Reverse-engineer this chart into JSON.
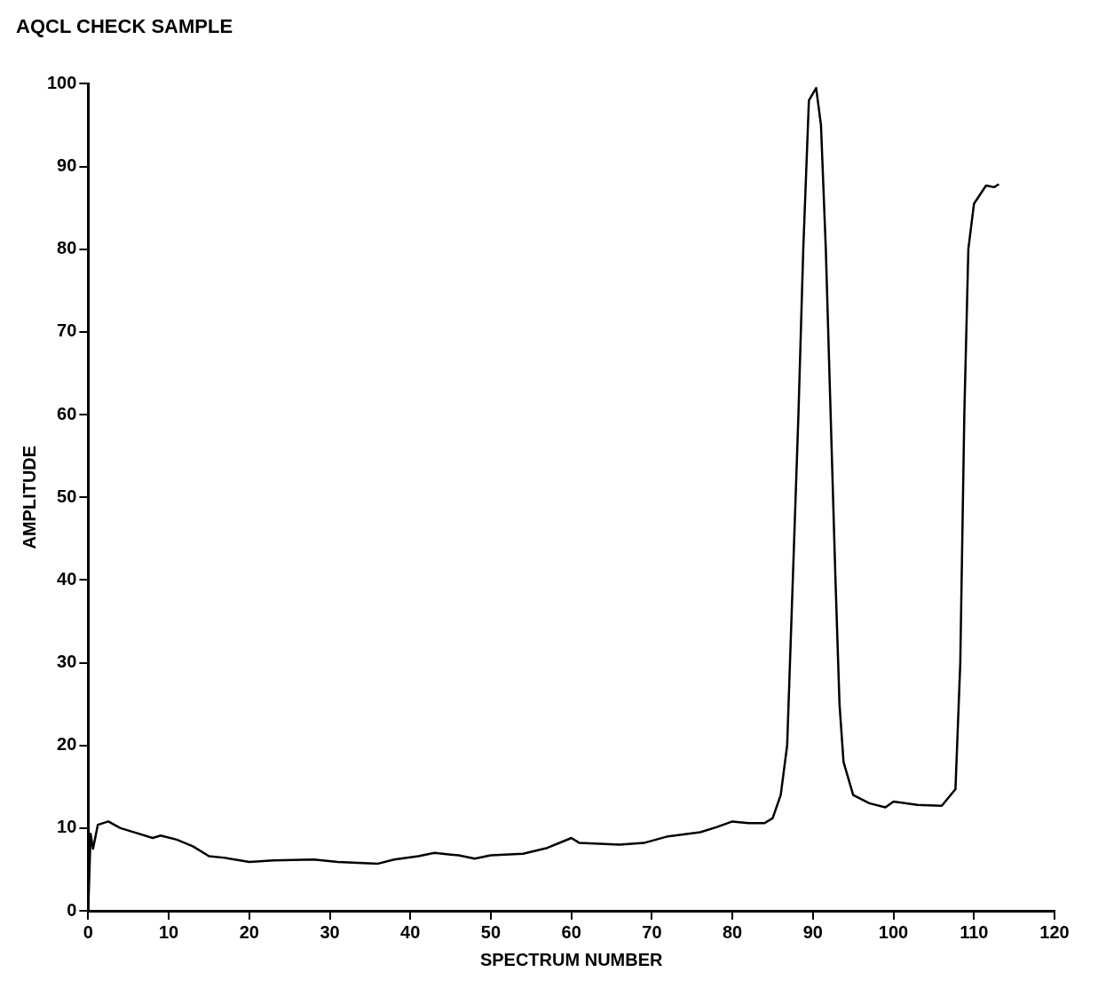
{
  "chart_data": {
    "type": "line",
    "title": "AQCL CHECK SAMPLE",
    "xlabel": "SPECTRUM NUMBER",
    "ylabel": "AMPLITUDE",
    "xlim": [
      0,
      120
    ],
    "xticks": [
      0,
      10,
      20,
      30,
      40,
      50,
      60,
      70,
      80,
      90,
      100,
      110,
      120
    ],
    "ylim": [
      0,
      100
    ],
    "yticks": [
      0,
      10,
      20,
      30,
      40,
      50,
      60,
      70,
      80,
      90,
      100
    ],
    "grid": false,
    "legend": false,
    "marker": "none",
    "line_style": "solid",
    "series": [
      {
        "color": "#000000",
        "x": [
          0,
          0.3,
          0.6,
          1.2,
          2.5,
          4,
          6,
          8,
          9,
          11,
          13,
          15,
          17,
          20,
          23,
          28,
          31,
          36,
          38,
          41,
          43,
          46,
          48,
          50,
          54,
          57,
          59,
          60,
          61,
          66,
          69,
          72,
          76,
          78,
          80,
          82,
          84,
          85,
          86,
          86.8,
          87.5,
          88.2,
          88.8,
          89.5,
          90.4,
          91,
          91.6,
          92.2,
          92.8,
          93.3,
          93.8,
          95,
          97,
          99,
          100,
          103,
          106,
          107.7,
          108.3,
          108.8,
          109.3,
          110,
          111.5,
          112.5,
          113
        ],
        "values": [
          0,
          9.3,
          7.5,
          10.4,
          10.8,
          10,
          9.4,
          8.8,
          9.1,
          8.6,
          7.8,
          6.6,
          6.4,
          5.9,
          6.1,
          6.2,
          5.9,
          5.7,
          6.2,
          6.6,
          7,
          6.7,
          6.3,
          6.7,
          6.9,
          7.6,
          8.4,
          8.8,
          8.2,
          8,
          8.2,
          9,
          9.5,
          10.1,
          10.8,
          10.6,
          10.6,
          11.2,
          14,
          20,
          40,
          60,
          80,
          98,
          99.5,
          95,
          80,
          60,
          40,
          25,
          18,
          14,
          13,
          12.5,
          13.2,
          12.8,
          12.7,
          14.7,
          30,
          60,
          80,
          85.5,
          87.7,
          87.5,
          87.8
        ]
      }
    ]
  }
}
